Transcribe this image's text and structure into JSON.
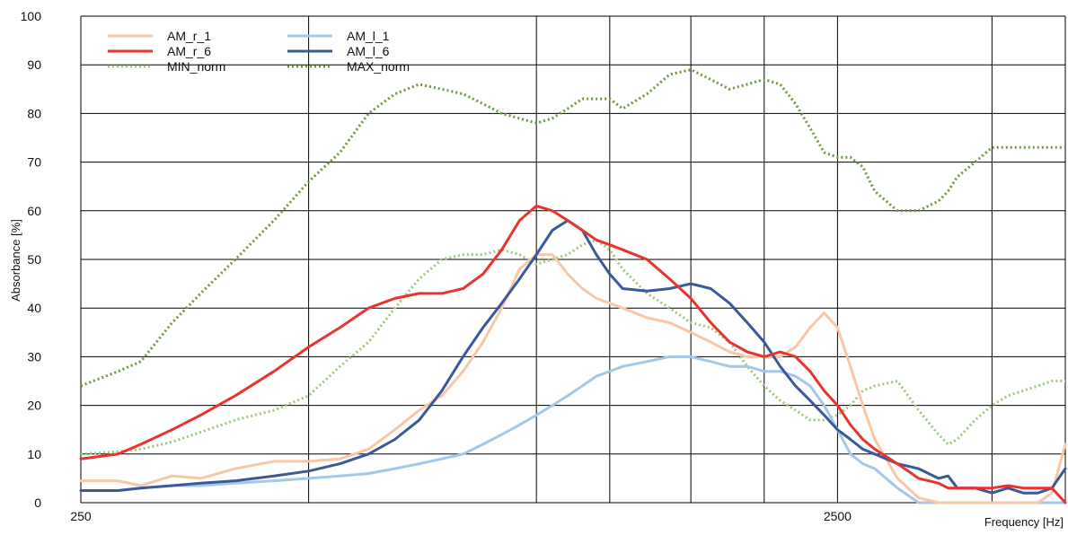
{
  "chart_data": {
    "type": "line",
    "title": "",
    "xlabel": "Frequency [Hz]",
    "ylabel": "Absorbance [%]",
    "x_scale": "log",
    "xlim": [
      250,
      5000
    ],
    "ylim": [
      0,
      100
    ],
    "x_tick_labels": [
      "250",
      "2500"
    ],
    "y_ticks": [
      0,
      10,
      20,
      30,
      40,
      50,
      60,
      70,
      80,
      90,
      100
    ],
    "x_gridlines": [
      500,
      1000,
      1250,
      1600,
      2000,
      2500,
      4000,
      5000
    ],
    "grid": true,
    "legend_position": "top-left",
    "series": [
      {
        "name": "AM_r_1",
        "color": "#f8c7a6",
        "style": "solid",
        "x": [
          250,
          280,
          300,
          330,
          360,
          400,
          450,
          500,
          550,
          600,
          650,
          700,
          750,
          800,
          850,
          900,
          950,
          1000,
          1050,
          1100,
          1150,
          1200,
          1250,
          1300,
          1400,
          1500,
          1600,
          1700,
          1800,
          1900,
          2000,
          2100,
          2200,
          2300,
          2400,
          2500,
          2600,
          2700,
          2800,
          3000,
          3200,
          3400,
          3500,
          3600,
          3800,
          4000,
          4200,
          4400,
          4600,
          4800,
          5000
        ],
        "y": [
          4.5,
          4.5,
          3.5,
          5.5,
          5,
          7,
          8.5,
          8.5,
          9,
          11,
          15,
          19,
          22,
          27,
          33,
          40,
          48,
          51,
          51,
          47,
          44,
          42,
          41,
          40,
          38,
          37,
          35,
          33,
          31,
          30,
          30,
          30,
          32,
          36,
          39,
          36,
          28,
          20,
          13,
          5,
          1,
          0,
          0,
          0,
          0,
          0,
          0,
          0,
          0,
          2,
          12
        ]
      },
      {
        "name": "AM_r_6",
        "color": "#e8332f",
        "style": "solid",
        "x": [
          250,
          280,
          300,
          330,
          360,
          400,
          450,
          500,
          550,
          600,
          650,
          700,
          750,
          800,
          850,
          900,
          950,
          1000,
          1050,
          1100,
          1150,
          1200,
          1250,
          1300,
          1400,
          1500,
          1600,
          1700,
          1800,
          1900,
          2000,
          2100,
          2200,
          2300,
          2400,
          2500,
          2600,
          2700,
          2800,
          3000,
          3200,
          3400,
          3500,
          3600,
          3800,
          4000,
          4200,
          4400,
          4600,
          4800,
          5000
        ],
        "y": [
          9,
          10,
          12,
          15,
          18,
          22,
          27,
          32,
          36,
          40,
          42,
          43,
          43,
          44,
          47,
          52,
          58,
          61,
          60,
          58,
          56,
          54,
          53,
          52,
          50,
          46,
          42,
          37,
          33,
          31,
          30,
          31,
          30,
          27,
          23,
          20,
          16,
          13,
          11,
          8,
          5,
          4,
          3,
          3,
          3,
          3,
          3.5,
          3,
          3,
          3,
          0
        ]
      },
      {
        "name": "AM_l_1",
        "color": "#a4c8ea",
        "style": "solid",
        "x": [
          250,
          280,
          300,
          330,
          360,
          400,
          450,
          500,
          550,
          600,
          650,
          700,
          750,
          800,
          850,
          900,
          950,
          1000,
          1050,
          1100,
          1150,
          1200,
          1250,
          1300,
          1400,
          1500,
          1600,
          1700,
          1800,
          1900,
          2000,
          2100,
          2200,
          2300,
          2400,
          2500,
          2600,
          2700,
          2800,
          3000,
          3200,
          3400,
          3500,
          3600,
          3800,
          4000,
          4200,
          4400,
          4600,
          4800,
          5000
        ],
        "y": [
          2.5,
          2.5,
          3,
          3.5,
          3.5,
          4,
          4.5,
          5,
          5.5,
          6,
          7,
          8,
          9,
          10,
          12,
          14,
          16,
          18,
          20,
          22,
          24,
          26,
          27,
          28,
          29,
          30,
          30,
          29,
          28,
          28,
          27,
          27,
          26,
          24,
          20,
          15,
          10,
          8,
          7,
          3,
          0,
          0,
          0,
          0,
          0,
          0,
          0,
          0,
          0,
          0,
          0
        ]
      },
      {
        "name": "AM_l_6",
        "color": "#3b5998",
        "style": "solid",
        "x": [
          250,
          280,
          300,
          330,
          360,
          400,
          450,
          500,
          550,
          600,
          650,
          700,
          750,
          800,
          850,
          900,
          950,
          1000,
          1050,
          1100,
          1150,
          1200,
          1250,
          1300,
          1400,
          1500,
          1600,
          1700,
          1800,
          1900,
          2000,
          2100,
          2200,
          2300,
          2400,
          2500,
          2600,
          2700,
          2800,
          3000,
          3200,
          3400,
          3500,
          3600,
          3800,
          4000,
          4200,
          4400,
          4600,
          4800,
          5000
        ],
        "y": [
          2.5,
          2.5,
          3,
          3.5,
          4,
          4.5,
          5.5,
          6.5,
          8,
          10,
          13,
          17,
          23,
          30,
          36,
          41,
          46,
          51,
          56,
          58,
          56,
          51,
          47,
          44,
          43.5,
          44,
          45,
          44,
          41,
          37,
          33,
          28,
          24,
          21,
          18,
          15,
          13,
          11,
          10,
          8,
          7,
          5,
          5.5,
          3,
          3,
          2,
          3,
          2,
          2,
          3,
          7
        ]
      },
      {
        "name": "MIN_norm",
        "color": "#9cc97a",
        "style": "dotted",
        "x": [
          250,
          280,
          300,
          330,
          360,
          400,
          450,
          500,
          550,
          600,
          650,
          700,
          750,
          800,
          850,
          900,
          950,
          1000,
          1050,
          1100,
          1150,
          1200,
          1250,
          1300,
          1400,
          1500,
          1600,
          1700,
          1800,
          1900,
          2000,
          2100,
          2200,
          2300,
          2400,
          2500,
          2600,
          2700,
          2800,
          3000,
          3200,
          3400,
          3500,
          3600,
          3800,
          4000,
          4200,
          4400,
          4600,
          4800,
          5000
        ],
        "y": [
          10,
          10.5,
          11,
          12.5,
          14.5,
          17,
          19,
          22,
          28,
          33,
          40,
          46,
          50,
          51,
          51,
          52,
          51,
          49,
          50,
          51,
          53,
          54,
          52,
          48,
          43,
          40,
          37,
          36,
          33,
          28,
          24,
          21,
          19,
          17,
          17,
          18,
          20,
          23,
          24,
          25,
          19,
          14,
          12,
          13,
          17,
          20,
          22,
          23,
          24,
          25,
          25
        ]
      },
      {
        "name": "MAX_norm",
        "color": "#6a9a3e",
        "style": "dotted",
        "x": [
          250,
          280,
          300,
          330,
          360,
          400,
          450,
          500,
          550,
          600,
          650,
          700,
          750,
          800,
          850,
          900,
          950,
          1000,
          1050,
          1100,
          1150,
          1200,
          1250,
          1300,
          1400,
          1500,
          1600,
          1700,
          1800,
          1900,
          2000,
          2100,
          2200,
          2300,
          2400,
          2500,
          2600,
          2700,
          2800,
          3000,
          3200,
          3400,
          3500,
          3600,
          3800,
          4000,
          4200,
          4400,
          4600,
          4800,
          5000
        ],
        "y": [
          24,
          27,
          29,
          37,
          43,
          50,
          58,
          66,
          72,
          80,
          84,
          86,
          85,
          84,
          82,
          80,
          79,
          78,
          79,
          81,
          83,
          83,
          83,
          81,
          84,
          88,
          89,
          87,
          85,
          86,
          87,
          86,
          82,
          77,
          72,
          71,
          71,
          69,
          64,
          60,
          60,
          62,
          64,
          67,
          70,
          73,
          73,
          73,
          73,
          73,
          73
        ]
      }
    ]
  }
}
